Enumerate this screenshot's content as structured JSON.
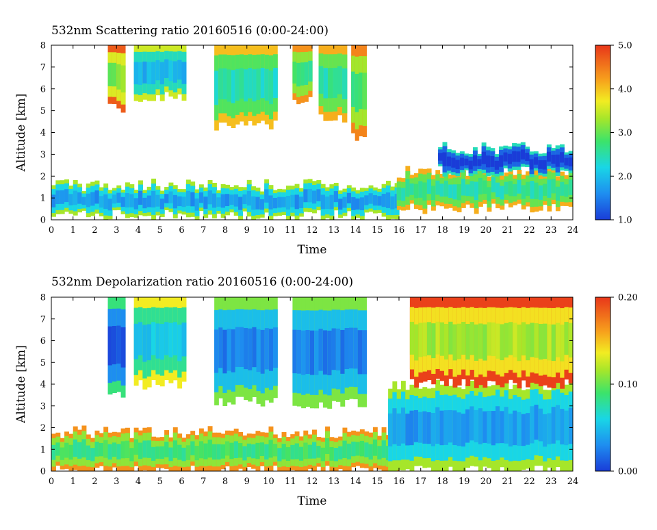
{
  "chart_data": [
    {
      "type": "heatmap",
      "title": "532nm Scattering ratio  20160516 (0:00-24:00)",
      "xlabel": "Time",
      "ylabel": "Altitude [km]",
      "xlim": [
        0,
        24
      ],
      "ylim": [
        0,
        8
      ],
      "x_ticks": [
        "0",
        "1",
        "2",
        "3",
        "4",
        "5",
        "6",
        "7",
        "8",
        "9",
        "10",
        "11",
        "12",
        "13",
        "14",
        "15",
        "16",
        "17",
        "18",
        "19",
        "20",
        "21",
        "22",
        "23",
        "24"
      ],
      "y_ticks": [
        "0",
        "1",
        "2",
        "3",
        "4",
        "5",
        "6",
        "7",
        "8"
      ],
      "colorbar": {
        "range": [
          1.0,
          5.0
        ],
        "ticks": [
          "1.0",
          "2.0",
          "3.0",
          "4.0",
          "5.0"
        ],
        "colormap": "jet"
      },
      "features": [
        {
          "t": [
            2.6,
            3.4
          ],
          "alt": [
            5.1,
            8.0
          ],
          "value": 3.6
        },
        {
          "t": [
            3.8,
            6.2
          ],
          "alt": [
            5.6,
            8.0
          ],
          "value": 2.4
        },
        {
          "t": [
            7.5,
            10.4
          ],
          "alt": [
            4.3,
            8.0
          ],
          "value": 2.9
        },
        {
          "t": [
            11.1,
            12.0
          ],
          "alt": [
            5.5,
            8.0
          ],
          "value": 3.2
        },
        {
          "t": [
            12.3,
            13.6
          ],
          "alt": [
            4.6,
            8.0
          ],
          "value": 3.0
        },
        {
          "t": [
            13.8,
            14.5
          ],
          "alt": [
            3.8,
            8.0
          ],
          "value": 3.3
        },
        {
          "t": [
            0.0,
            16.0
          ],
          "alt": [
            0.2,
            1.6
          ],
          "value": 2.2
        },
        {
          "t": [
            15.9,
            24.0
          ],
          "alt": [
            0.5,
            2.2
          ],
          "value": 3.0
        },
        {
          "t": [
            17.8,
            24.0
          ],
          "alt": [
            2.2,
            3.3
          ],
          "value": 1.3
        }
      ]
    },
    {
      "type": "heatmap",
      "title": "532nm Depolarization ratio  20160516 (0:00-24:00)",
      "xlabel": "Time",
      "ylabel": "Altitude [km]",
      "xlim": [
        0,
        24
      ],
      "ylim": [
        0,
        8
      ],
      "x_ticks": [
        "0",
        "1",
        "2",
        "3",
        "4",
        "5",
        "6",
        "7",
        "8",
        "9",
        "10",
        "11",
        "12",
        "13",
        "14",
        "15",
        "16",
        "17",
        "18",
        "19",
        "20",
        "21",
        "22",
        "23",
        "24"
      ],
      "y_ticks": [
        "0",
        "1",
        "2",
        "3",
        "4",
        "5",
        "6",
        "7",
        "8"
      ],
      "colorbar": {
        "range": [
          0.0,
          0.2
        ],
        "ticks": [
          "0.00",
          "0.10",
          "0.20"
        ],
        "colormap": "jet"
      },
      "features": [
        {
          "t": [
            2.6,
            3.4
          ],
          "alt": [
            3.6,
            8.0
          ],
          "value": 0.03
        },
        {
          "t": [
            3.8,
            6.2
          ],
          "alt": [
            4.0,
            8.0
          ],
          "value": 0.08
        },
        {
          "t": [
            7.5,
            10.4
          ],
          "alt": [
            3.2,
            8.0
          ],
          "value": 0.05
        },
        {
          "t": [
            11.1,
            14.5
          ],
          "alt": [
            3.1,
            8.0
          ],
          "value": 0.05
        },
        {
          "t": [
            0.0,
            16.0
          ],
          "alt": [
            0.0,
            1.8
          ],
          "value": 0.11
        },
        {
          "t": [
            15.5,
            24.0
          ],
          "alt": [
            0.0,
            4.0
          ],
          "value": 0.06
        },
        {
          "t": [
            16.5,
            24.0
          ],
          "alt": [
            4.0,
            8.0
          ],
          "value": 0.14
        }
      ]
    }
  ]
}
